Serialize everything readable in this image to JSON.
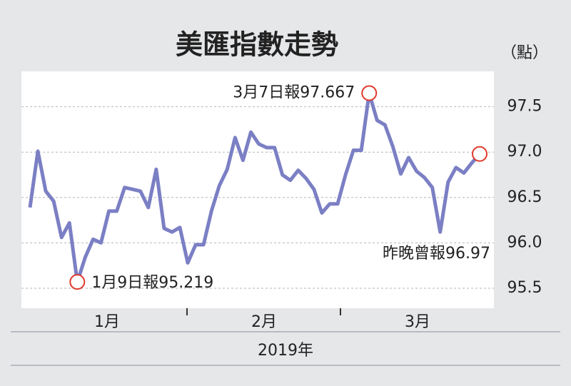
{
  "chart_data": {
    "type": "line",
    "title": "美匯指數走勢",
    "unit_label": "（點）",
    "x_label": "2019年",
    "months": [
      "1月",
      "2月",
      "3月"
    ],
    "series": [
      {
        "name": "美匯指數",
        "color": "#7b7fc4",
        "values": [
          96.39,
          97.01,
          96.57,
          96.46,
          96.06,
          96.22,
          95.57,
          95.84,
          96.04,
          96.0,
          96.35,
          96.35,
          96.61,
          96.59,
          96.57,
          96.39,
          96.81,
          96.16,
          96.12,
          96.17,
          95.78,
          95.98,
          95.98,
          96.35,
          96.63,
          96.81,
          97.16,
          96.91,
          97.22,
          97.09,
          97.05,
          97.05,
          96.75,
          96.69,
          96.8,
          96.71,
          96.59,
          96.33,
          96.43,
          96.43,
          96.75,
          97.02,
          97.02,
          97.65,
          97.35,
          97.3,
          97.06,
          96.76,
          96.94,
          96.79,
          96.72,
          96.61,
          96.12,
          96.67,
          96.83,
          96.77,
          96.88,
          96.98
        ]
      }
    ],
    "annotations": {
      "max": "3月7日報97.667",
      "min": "1月9日報95.219",
      "last": "昨晚曾報96.97"
    },
    "marker_color": "#e0392b",
    "ylim": [
      95.28,
      97.89
    ],
    "yticks": [
      95.5,
      {
        "value": 96.0,
        "label": "96.0"
      },
      96.5,
      {
        "value": 97.0,
        "label": "97.0"
      },
      97.5
    ],
    "grid": true
  }
}
